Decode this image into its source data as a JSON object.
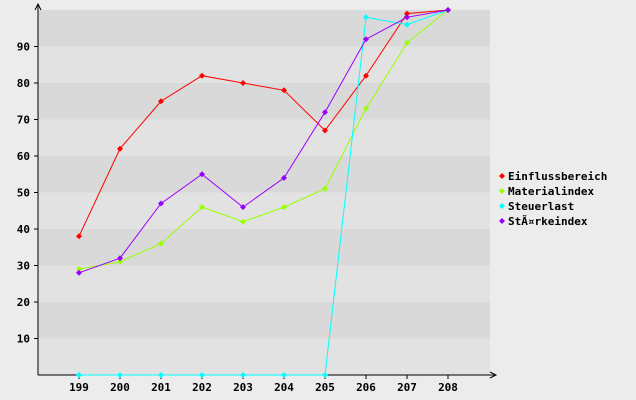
{
  "chart_data": {
    "type": "line",
    "title": "",
    "xlabel": "",
    "ylabel": "",
    "categories": [
      "199",
      "200",
      "201",
      "202",
      "203",
      "204",
      "205",
      "206",
      "207",
      "208"
    ],
    "ylim": [
      0,
      100
    ],
    "yticks": [
      "10",
      "20",
      "30",
      "40",
      "50",
      "60",
      "70",
      "80",
      "90"
    ],
    "grid": "horizontal bands",
    "legend_position": "right",
    "series": [
      {
        "name": "Einflussbereich",
        "color": "#ff0000",
        "values": [
          38,
          62,
          75,
          82,
          80,
          78,
          67,
          82,
          99,
          100
        ]
      },
      {
        "name": "Materialindex",
        "color": "#99ff00",
        "values": [
          29,
          31,
          36,
          46,
          42,
          46,
          51,
          73,
          91,
          100
        ]
      },
      {
        "name": "Steuerlast",
        "color": "#00ffff",
        "values": [
          0,
          0,
          0,
          0,
          0,
          0,
          0,
          98,
          96,
          100
        ]
      },
      {
        "name": "StÃ¤rkeindex",
        "color": "#9900ff",
        "values": [
          28,
          32,
          47,
          55,
          46,
          54,
          72,
          92,
          98,
          100
        ]
      }
    ]
  }
}
